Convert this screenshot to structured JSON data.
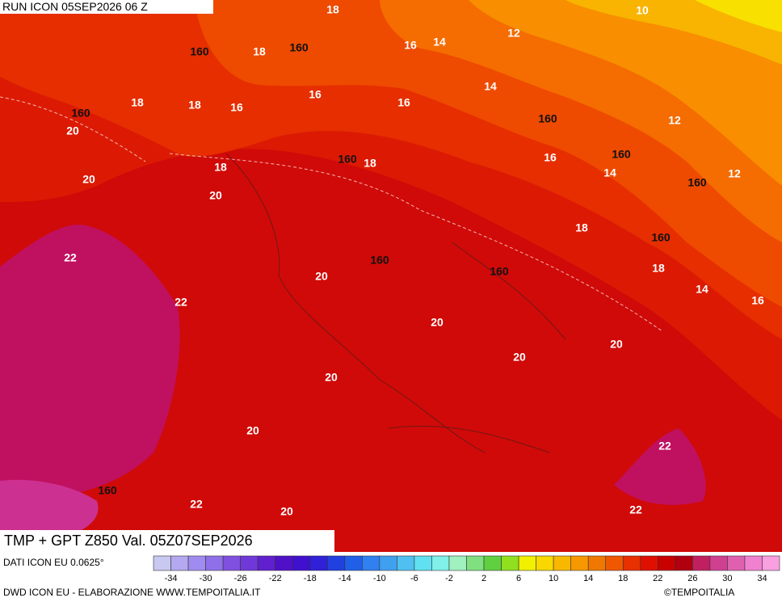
{
  "header": {
    "run": "RUN ICON 05SEP2026 06 Z"
  },
  "map": {
    "title": "TMP + GPT Z850 Val. 05Z07SEP2026",
    "temperature_labels": [
      "18",
      "10",
      "12",
      "14",
      "16",
      "18",
      "18",
      "18",
      "16",
      "16",
      "16",
      "14",
      "12",
      "20",
      "16",
      "14",
      "12",
      "18",
      "18",
      "20",
      "20",
      "18",
      "22",
      "18",
      "20",
      "22",
      "14",
      "16",
      "20",
      "20",
      "20",
      "20",
      "20",
      "22",
      "22",
      "20",
      "22"
    ],
    "geopotential_labels": [
      "160",
      "160",
      "160",
      "160",
      "160",
      "160",
      "160",
      "160",
      "160",
      "160",
      "160"
    ]
  },
  "colorbar": {
    "ticks": [
      -34,
      -30,
      -26,
      -22,
      -18,
      -14,
      -10,
      -6,
      -2,
      2,
      6,
      10,
      14,
      18,
      22,
      26,
      30,
      34
    ],
    "colors": [
      "#c8c8f0",
      "#b4a8f0",
      "#a08cf0",
      "#9070e8",
      "#8050e0",
      "#7038d8",
      "#6020d0",
      "#5010c8",
      "#4010d0",
      "#3020d8",
      "#2040e0",
      "#2060e8",
      "#3080f0",
      "#40a0f0",
      "#50c0f0",
      "#60e0f0",
      "#80f0e8",
      "#a0f0c0",
      "#80e080",
      "#60d040",
      "#90e020",
      "#f0f000",
      "#f8d800",
      "#f8b800",
      "#f89800",
      "#f07800",
      "#f05800",
      "#e83000",
      "#e01000",
      "#c80000",
      "#b00010",
      "#c02060",
      "#d04090",
      "#e060b0",
      "#f080d0",
      "#f8a0e0"
    ]
  },
  "footer": {
    "source": "DATI ICON EU 0.0625°",
    "credit": "DWD ICON EU - ELABORAZIONE WWW.TEMPOITALIA.IT",
    "copyright": "©TEMPOITALIA"
  }
}
